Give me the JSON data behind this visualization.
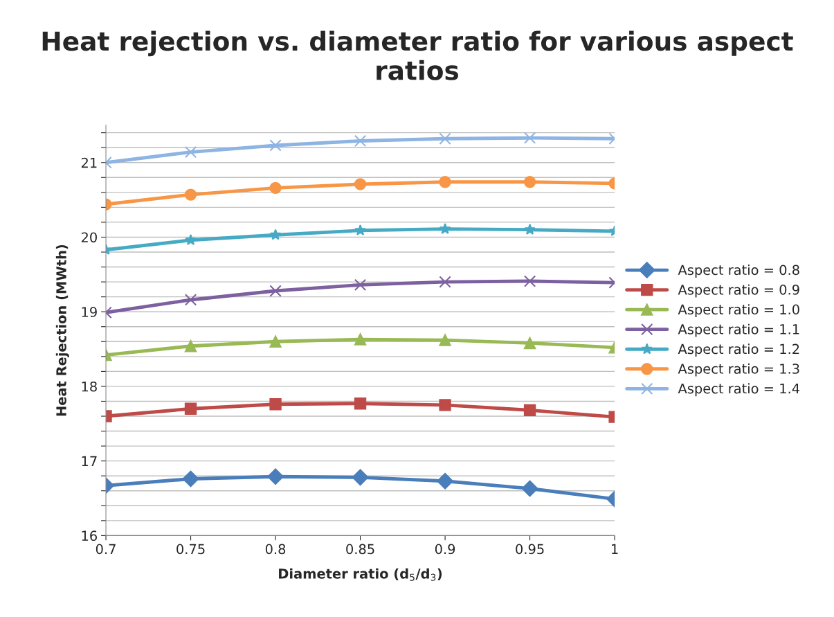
{
  "chart_data": {
    "type": "line",
    "title": "Heat rejection vs. diameter ratio for various aspect ratios",
    "xlabel": "Diameter ratio (d$_{5}$/d$_{3}$)",
    "ylabel": "Heat Rejection (MWth)",
    "x": [
      0.7,
      0.75,
      0.8,
      0.85,
      0.9,
      0.95,
      1
    ],
    "xlim": [
      0.7,
      1
    ],
    "xticks": [
      0.7,
      0.75,
      0.8,
      0.85,
      0.9,
      0.95,
      1
    ],
    "ylim": [
      16,
      21.5
    ],
    "yticks": [
      16,
      {
        "value": 16.2,
        "label": null
      },
      {
        "value": 16.4,
        "label": null
      },
      {
        "value": 16.6,
        "label": null
      },
      {
        "value": 16.8,
        "label": null
      },
      17,
      {
        "value": 17.2,
        "label": null
      },
      {
        "value": 17.4,
        "label": null
      },
      {
        "value": 17.6,
        "label": null
      },
      {
        "value": 17.8,
        "label": null
      },
      18,
      {
        "value": 18.2,
        "label": null
      },
      {
        "value": 18.4,
        "label": null
      },
      {
        "value": 18.6,
        "label": null
      },
      {
        "value": 18.8,
        "label": null
      },
      19,
      {
        "value": 19.2,
        "label": null
      },
      {
        "value": 19.4,
        "label": null
      },
      {
        "value": 19.6,
        "label": null
      },
      {
        "value": 19.8,
        "label": null
      },
      20,
      {
        "value": 20.2,
        "label": null
      },
      {
        "value": 20.4,
        "label": null
      },
      {
        "value": 20.6,
        "label": null
      },
      {
        "value": 20.8,
        "label": null
      },
      21,
      {
        "value": 21.2,
        "label": null
      },
      {
        "value": 21.4,
        "label": null
      }
    ],
    "grid": "y",
    "legend": "right",
    "series": [
      {
        "name": "Aspect ratio = 0.8",
        "color": "#4a7ebb",
        "marker": "diamond",
        "values": [
          16.67,
          16.76,
          16.79,
          16.78,
          16.73,
          16.63,
          16.49
        ]
      },
      {
        "name": "Aspect ratio = 0.9",
        "color": "#be4b48",
        "marker": "square",
        "values": [
          17.6,
          17.7,
          17.76,
          17.77,
          17.75,
          17.68,
          17.59
        ]
      },
      {
        "name": "Aspect ratio = 1.0",
        "color": "#98b954",
        "marker": "triangle",
        "values": [
          18.42,
          18.54,
          18.6,
          18.63,
          18.62,
          18.58,
          18.52
        ]
      },
      {
        "name": "Aspect ratio = 1.1",
        "color": "#7d60a0",
        "marker": "cross",
        "values": [
          18.99,
          19.16,
          19.28,
          19.36,
          19.4,
          19.41,
          19.39
        ]
      },
      {
        "name": "Aspect ratio = 1.2",
        "color": "#46aac5",
        "marker": "star",
        "values": [
          19.83,
          19.96,
          20.03,
          20.09,
          20.11,
          20.1,
          20.08
        ]
      },
      {
        "name": "Aspect ratio = 1.3",
        "color": "#f79646",
        "marker": "circle",
        "values": [
          20.44,
          20.57,
          20.66,
          20.71,
          20.74,
          20.74,
          20.72
        ]
      },
      {
        "name": "Aspect ratio = 1.4",
        "color": "#8eb4e3",
        "marker": "cross",
        "values": [
          21.0,
          21.14,
          21.23,
          21.29,
          21.32,
          21.33,
          21.32
        ]
      }
    ]
  }
}
